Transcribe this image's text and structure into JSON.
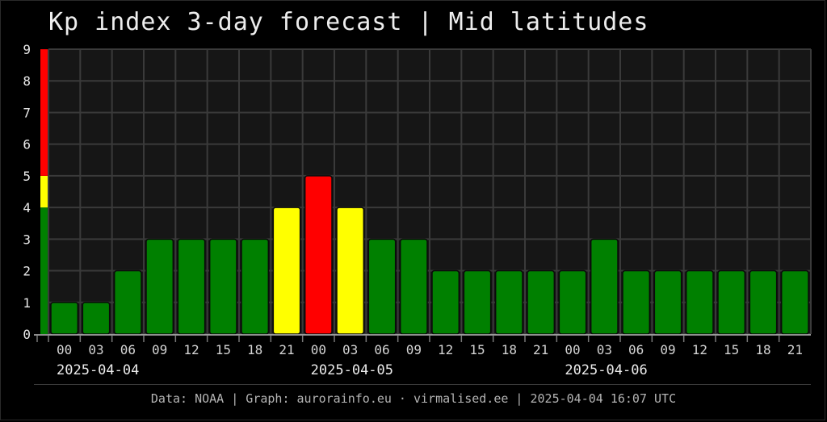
{
  "title": "Kp index 3-day forecast | Mid latitudes",
  "footer": "Data: NOAA | Graph: aurorainfo.eu · virmalised.ee | 2025-04-04 16:07 UTC",
  "colors": {
    "background": "#000000",
    "plot_background": "#161616",
    "grid": "#3a3a3a",
    "low": "#008000",
    "moderate": "#ffff00",
    "high": "#ff0000"
  },
  "chart_data": {
    "type": "bar",
    "title": "Kp index 3-day forecast | Mid latitudes",
    "ylim": [
      0,
      9
    ],
    "yticks": [
      "0",
      "1",
      "2",
      "3",
      "4",
      "5",
      "6",
      "7",
      "8",
      "9"
    ],
    "grid": true,
    "categories": [
      "00",
      "03",
      "06",
      "09",
      "12",
      "15",
      "18",
      "21",
      "00",
      "03",
      "06",
      "09",
      "12",
      "15",
      "18",
      "21",
      "00",
      "03",
      "06",
      "09",
      "12",
      "15",
      "18",
      "21"
    ],
    "dates": [
      "2025-04-04",
      "2025-04-05",
      "2025-04-06"
    ],
    "values": [
      1,
      1,
      2,
      3,
      3,
      3,
      3,
      4,
      5,
      4,
      3,
      3,
      2,
      2,
      2,
      2,
      2,
      3,
      2,
      2,
      2,
      2,
      2,
      2
    ],
    "color_scale": [
      {
        "from": 0,
        "to": 4,
        "color": "#008000"
      },
      {
        "from": 4,
        "to": 5,
        "color": "#ffff00"
      },
      {
        "from": 5,
        "to": 9,
        "color": "#ff0000"
      }
    ]
  }
}
